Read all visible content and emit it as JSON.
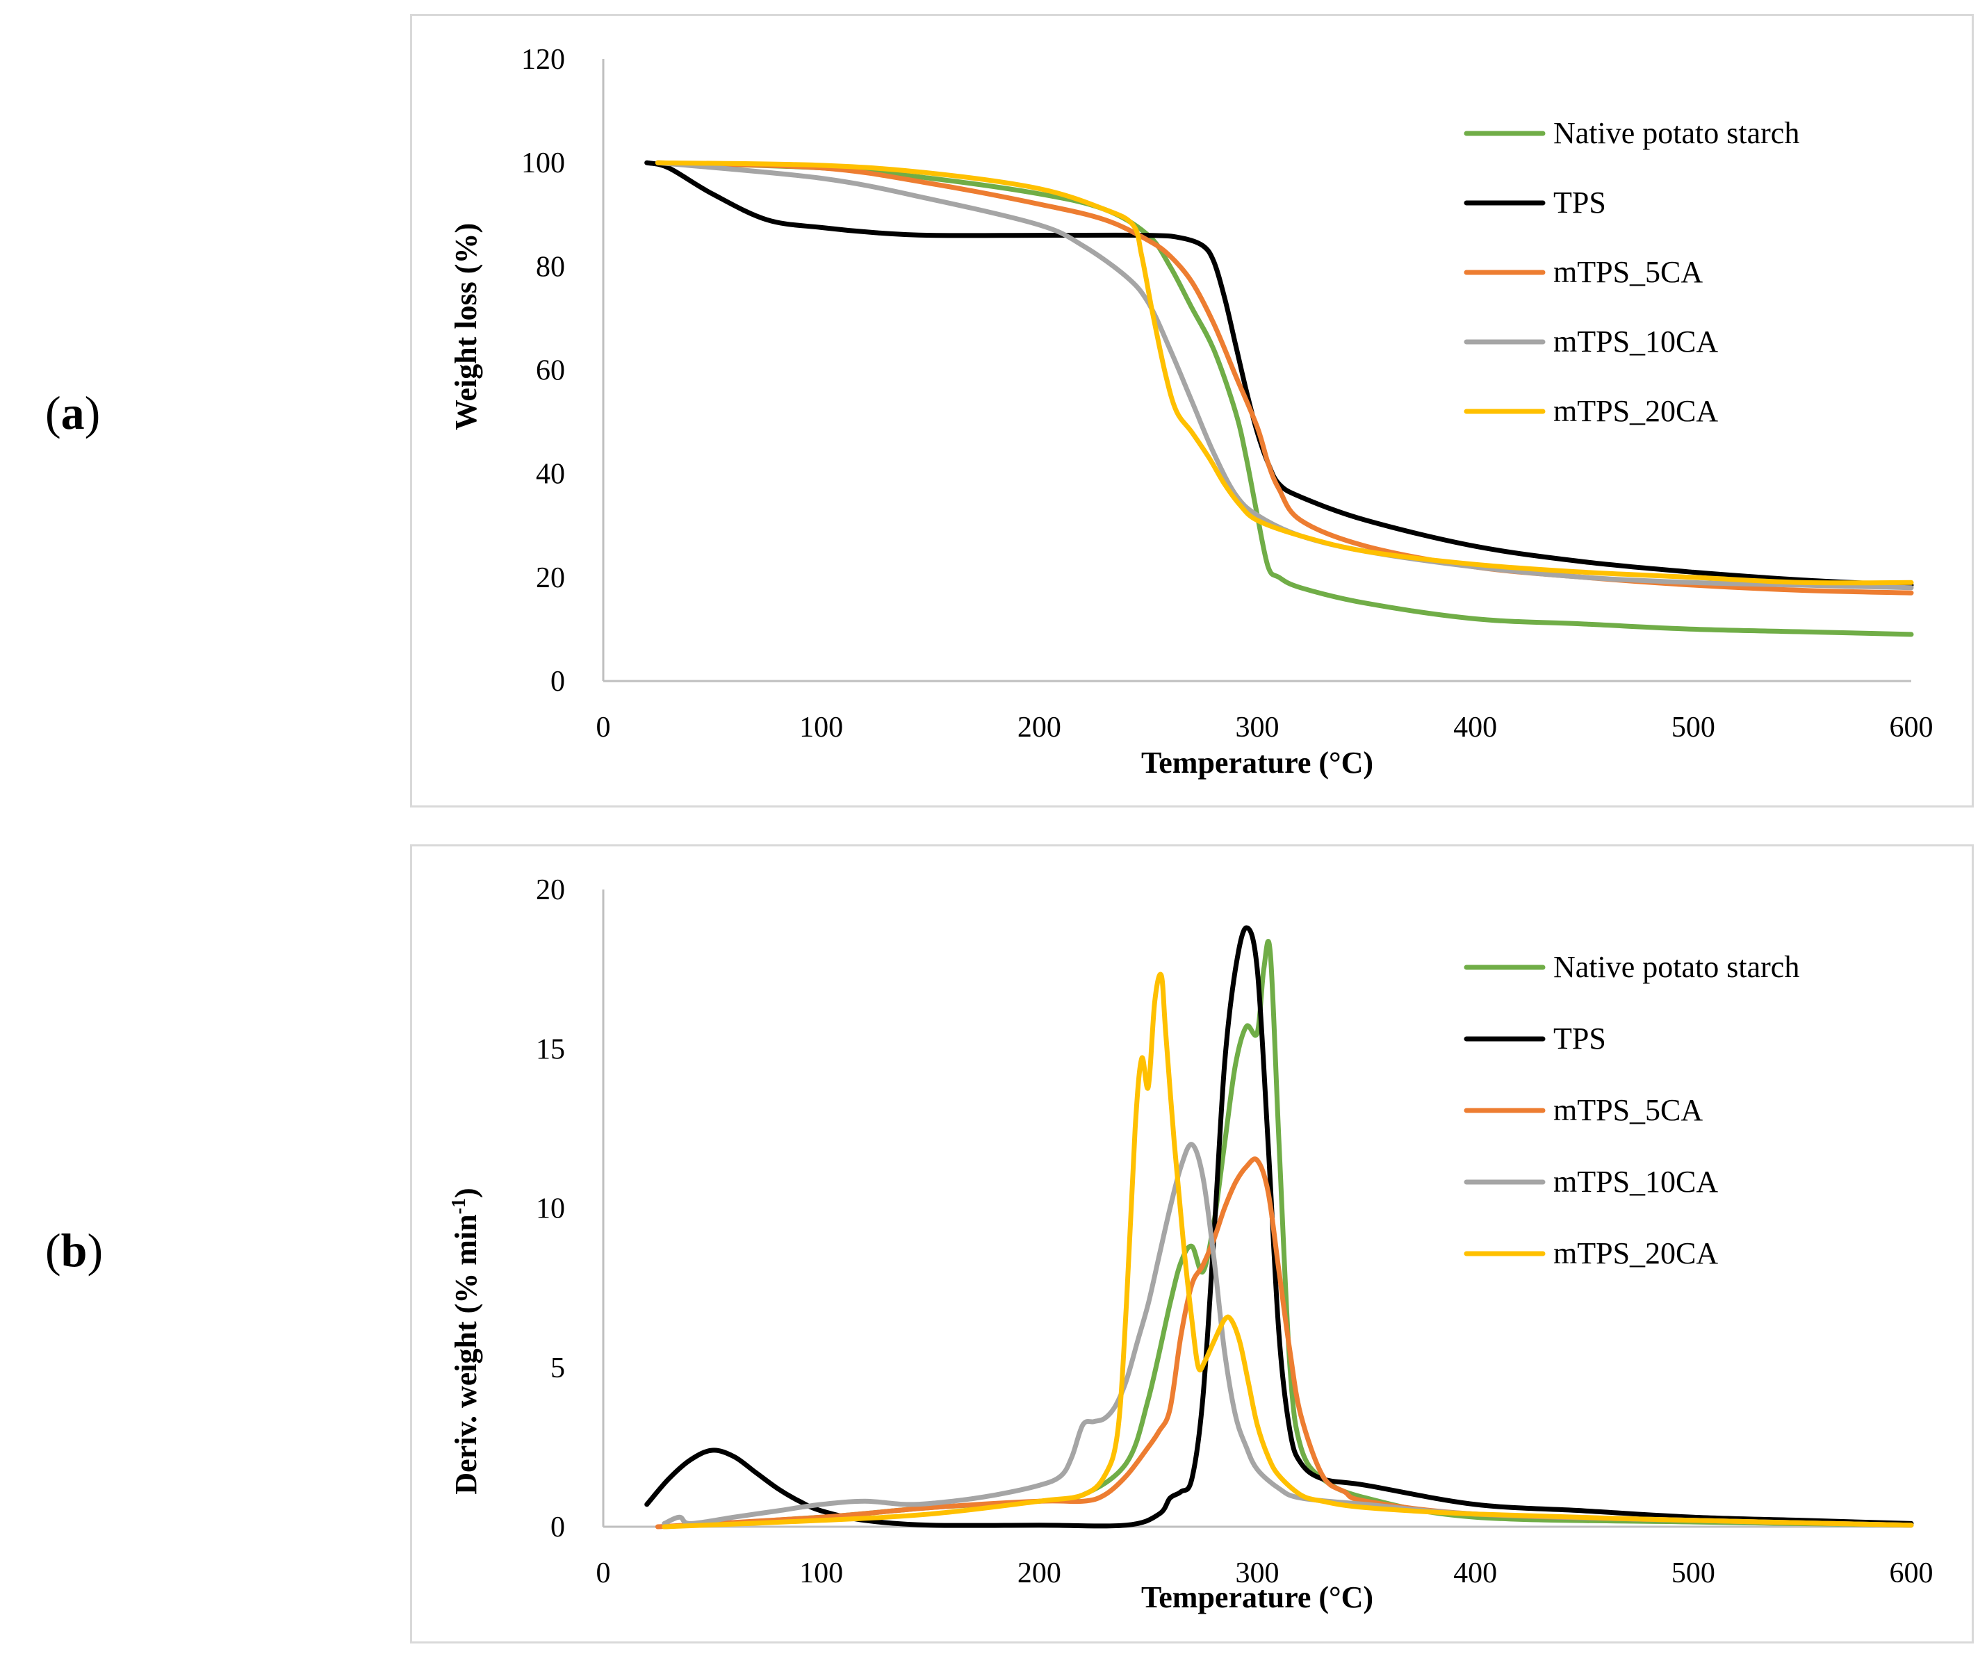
{
  "panels": [
    {
      "label_open": "(",
      "label_letter": "a",
      "label_close": ")"
    },
    {
      "label_open": "(",
      "label_letter": "b",
      "label_close": ")"
    }
  ],
  "chart_data": [
    {
      "type": "line",
      "title": "",
      "xlabel": "Temperature (°C)",
      "ylabel": "Weight loss (%)",
      "xlim": [
        0,
        600
      ],
      "ylim": [
        0,
        120
      ],
      "xticks": [
        0,
        100,
        200,
        300,
        400,
        500,
        600
      ],
      "yticks": [
        0,
        20,
        40,
        60,
        80,
        100,
        120
      ],
      "grid": false,
      "legend_position": "top-right",
      "series": [
        {
          "name": "Native potato starch",
          "color": "#70ad47",
          "x": [
            25,
            100,
            150,
            200,
            230,
            250,
            260,
            270,
            280,
            290,
            295,
            300,
            305,
            310,
            320,
            350,
            400,
            450,
            500,
            550,
            600
          ],
          "y": [
            100,
            99,
            97,
            94,
            91,
            86,
            80,
            72,
            64,
            52,
            43,
            32,
            22,
            20,
            18,
            15,
            12,
            11,
            10,
            9.5,
            9
          ]
        },
        {
          "name": "TPS",
          "color": "#000000",
          "x": [
            20,
            30,
            50,
            75,
            100,
            125,
            150,
            200,
            250,
            265,
            275,
            280,
            285,
            290,
            295,
            300,
            305,
            310,
            320,
            350,
            400,
            450,
            500,
            550,
            600
          ],
          "y": [
            100,
            99,
            94,
            89,
            87.5,
            86.5,
            86,
            86,
            86,
            85.5,
            84,
            81,
            74,
            65,
            56,
            48,
            42,
            38,
            35.5,
            31,
            26,
            23,
            21,
            19.5,
            18.5
          ]
        },
        {
          "name": "mTPS_5CA",
          "color": "#ed7d31",
          "x": [
            25,
            100,
            150,
            200,
            230,
            250,
            260,
            270,
            280,
            290,
            300,
            305,
            310,
            320,
            350,
            400,
            450,
            500,
            550,
            600
          ],
          "y": [
            100,
            99,
            96,
            92,
            89,
            85,
            82,
            77,
            69,
            59,
            49,
            42,
            37,
            31,
            26,
            22,
            20,
            18.5,
            17.5,
            17
          ]
        },
        {
          "name": "mTPS_10CA",
          "color": "#a5a5a5",
          "x": [
            25,
            100,
            150,
            200,
            220,
            240,
            250,
            260,
            270,
            280,
            290,
            300,
            320,
            350,
            400,
            450,
            500,
            550,
            600
          ],
          "y": [
            100,
            97,
            93,
            88,
            84,
            78,
            73,
            64,
            54,
            44,
            36,
            32,
            28,
            25,
            22,
            20,
            19,
            18.5,
            18
          ]
        },
        {
          "name": "mTPS_20CA",
          "color": "#ffc000",
          "x": [
            25,
            100,
            150,
            200,
            230,
            243,
            247,
            252,
            258,
            263,
            270,
            278,
            285,
            292,
            300,
            320,
            350,
            400,
            450,
            500,
            550,
            600
          ],
          "y": [
            100,
            99.5,
            98,
            95,
            91,
            88,
            82,
            71,
            59,
            52,
            48,
            43,
            38,
            34,
            31,
            28,
            25,
            22.5,
            21,
            20,
            19,
            19
          ]
        }
      ]
    },
    {
      "type": "line",
      "title": "",
      "xlabel": "Temperature (°C)",
      "ylabel": "Deriv. weight  (% min",
      "ylabel_superscript": "-1",
      "ylabel_close": ")",
      "xlim": [
        0,
        600
      ],
      "ylim": [
        0,
        20
      ],
      "xticks": [
        0,
        100,
        200,
        300,
        400,
        500,
        600
      ],
      "yticks": [
        0,
        5,
        10,
        15,
        20
      ],
      "grid": false,
      "legend_position": "top-right",
      "series": [
        {
          "name": "Native potato starch",
          "color": "#70ad47",
          "x": [
            28,
            100,
            150,
            200,
            220,
            240,
            250,
            260,
            265,
            270,
            275,
            280,
            285,
            290,
            295,
            300,
            303,
            306,
            310,
            315,
            320,
            330,
            350,
            400,
            500,
            600
          ],
          "y": [
            0,
            0.3,
            0.6,
            0.8,
            1.0,
            2.0,
            4.0,
            7.0,
            8.3,
            8.8,
            8.0,
            9.5,
            12,
            14.5,
            15.7,
            15.5,
            17.5,
            18.0,
            12,
            5,
            2.5,
            1.5,
            0.9,
            0.3,
            0.15,
            0.05
          ]
        },
        {
          "name": "TPS",
          "color": "#000000",
          "x": [
            20,
            30,
            40,
            50,
            60,
            70,
            80,
            90,
            100,
            120,
            150,
            200,
            240,
            255,
            260,
            265,
            270,
            275,
            280,
            285,
            290,
            295,
            300,
            305,
            310,
            315,
            320,
            330,
            350,
            400,
            450,
            500,
            550,
            600
          ],
          "y": [
            0.7,
            1.5,
            2.1,
            2.4,
            2.2,
            1.7,
            1.2,
            0.8,
            0.5,
            0.2,
            0.05,
            0.05,
            0.05,
            0.4,
            0.9,
            1.1,
            1.5,
            4.0,
            9.0,
            14.5,
            17.5,
            18.8,
            17.5,
            12,
            6,
            3.0,
            2.0,
            1.5,
            1.3,
            0.7,
            0.5,
            0.3,
            0.2,
            0.1
          ]
        },
        {
          "name": "mTPS_5CA",
          "color": "#ed7d31",
          "x": [
            25,
            100,
            150,
            200,
            220,
            230,
            240,
            250,
            255,
            260,
            265,
            270,
            275,
            280,
            285,
            290,
            295,
            300,
            305,
            310,
            315,
            320,
            330,
            340,
            350,
            400,
            500,
            600
          ],
          "y": [
            0,
            0.3,
            0.6,
            0.8,
            0.8,
            1.0,
            1.6,
            2.5,
            3.0,
            3.7,
            6.0,
            7.6,
            8.2,
            9.0,
            10.0,
            10.8,
            11.3,
            11.5,
            10.5,
            8.0,
            5.5,
            3.5,
            1.6,
            1.1,
            0.8,
            0.4,
            0.2,
            0.05
          ]
        },
        {
          "name": "mTPS_10CA",
          "color": "#a5a5a5",
          "x": [
            28,
            35,
            40,
            60,
            80,
            100,
            120,
            140,
            160,
            180,
            200,
            210,
            215,
            220,
            225,
            230,
            235,
            240,
            245,
            250,
            255,
            260,
            265,
            270,
            275,
            280,
            285,
            290,
            295,
            300,
            310,
            320,
            350,
            400,
            500,
            600
          ],
          "y": [
            0.1,
            0.3,
            0.1,
            0.3,
            0.5,
            0.7,
            0.8,
            0.7,
            0.8,
            1.0,
            1.3,
            1.6,
            2.2,
            3.2,
            3.3,
            3.4,
            3.8,
            4.6,
            5.8,
            7.0,
            8.5,
            10.0,
            11.3,
            12.0,
            11.0,
            8.5,
            5.5,
            3.5,
            2.5,
            1.8,
            1.2,
            0.9,
            0.7,
            0.4,
            0.2,
            0.05
          ]
        },
        {
          "name": "mTPS_20CA",
          "color": "#ffc000",
          "x": [
            28,
            100,
            150,
            200,
            220,
            230,
            236,
            240,
            244,
            247,
            250,
            253,
            256,
            258,
            262,
            266,
            270,
            273,
            276,
            280,
            285,
            288,
            292,
            296,
            300,
            305,
            310,
            320,
            330,
            350,
            400,
            500,
            600
          ],
          "y": [
            0,
            0.2,
            0.4,
            0.8,
            1.0,
            1.6,
            3.0,
            7.0,
            12.5,
            14.7,
            13.8,
            16.5,
            17.3,
            15.5,
            12.0,
            9.0,
            6.5,
            5.0,
            5.2,
            5.8,
            6.5,
            6.5,
            5.8,
            4.5,
            3.2,
            2.2,
            1.6,
            1.0,
            0.8,
            0.6,
            0.4,
            0.2,
            0.05
          ]
        }
      ]
    }
  ]
}
